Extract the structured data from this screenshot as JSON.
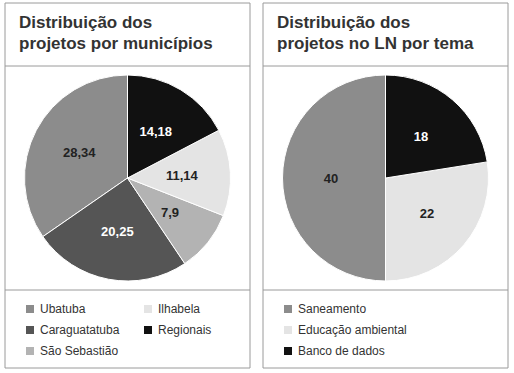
{
  "chart_data": [
    {
      "type": "pie",
      "title": "Distribuição dos\nprojetos por municípios",
      "categories": [
        "Ubatuba",
        "Caraguatatuba",
        "São Sebastião",
        "Ilhabela",
        "Regionais"
      ],
      "values": [
        28.34,
        20.25,
        7.9,
        11.14,
        14.18
      ],
      "value_labels": [
        "28,34",
        "20,25",
        "7,9",
        "11,14",
        "14,18"
      ],
      "colors": [
        "#8c8c8c",
        "#555555",
        "#b3b3b3",
        "#e4e4e4",
        "#111111"
      ],
      "data_labels": true,
      "legend": "bottom"
    },
    {
      "type": "pie",
      "title": "Distribuição dos\nprojetos no LN por tema",
      "categories": [
        "Saneamento",
        "Educação ambiental",
        "Banco de dados"
      ],
      "values": [
        40,
        22,
        18
      ],
      "colors": [
        "#8c8c8c",
        "#e4e4e4",
        "#111111"
      ],
      "data_labels": true,
      "legend": "bottom"
    }
  ]
}
